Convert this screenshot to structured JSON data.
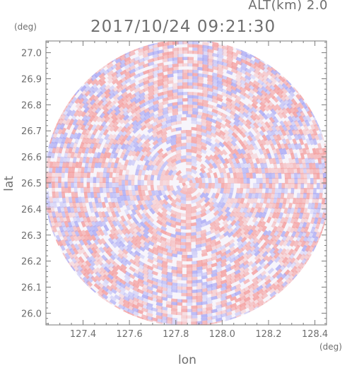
{
  "header": {
    "altitude_label": "ALT(km) 2.0",
    "timestamp": "2017/10/24 09:21:30"
  },
  "chart_data": {
    "type": "heatmap",
    "title": "2017/10/24 09:21:30",
    "subtitle": "ALT(km) 2.0",
    "xlabel": "lon",
    "ylabel": "lat",
    "x_unit": "(deg)",
    "y_unit": "(deg)",
    "xlim": [
      127.24,
      128.45
    ],
    "ylim": [
      25.955,
      27.045
    ],
    "x_ticks": [
      "127.4",
      "127.6",
      "127.8",
      "128.0",
      "128.2",
      "128.4"
    ],
    "y_ticks": [
      "26.0",
      "26.1",
      "26.2",
      "26.3",
      "26.4",
      "26.5",
      "26.6",
      "26.7",
      "26.8",
      "26.9",
      "27.0"
    ],
    "center": {
      "lon": 127.85,
      "lat": 26.5
    },
    "colors": {
      "positive": "#f4a0a0",
      "negative": "#a8a8f4",
      "axis": "#7a7a7a",
      "text": "#6e6e6e"
    }
  }
}
